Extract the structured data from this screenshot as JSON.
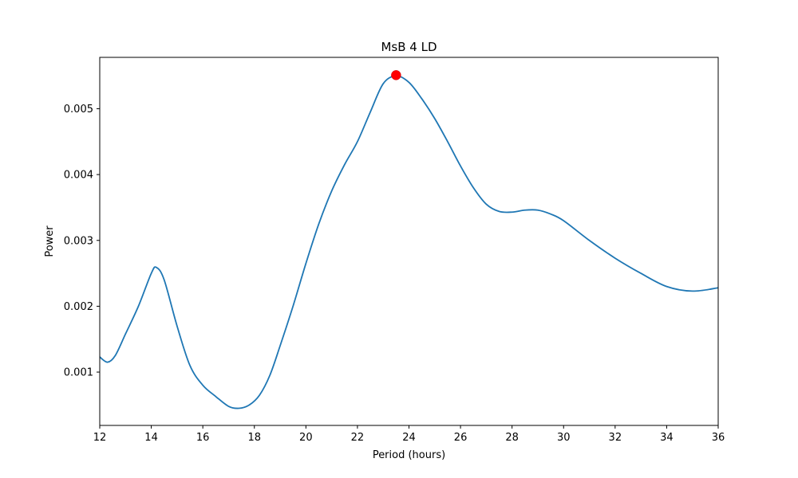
{
  "chart_data": {
    "type": "line",
    "title": "MsB 4 LD",
    "xlabel": "Period (hours)",
    "ylabel": "Power",
    "xlim": [
      12,
      36
    ],
    "ylim": [
      0.00019,
      0.00578
    ],
    "x_ticks": [
      12,
      14,
      16,
      18,
      20,
      22,
      24,
      26,
      28,
      30,
      32,
      34,
      36
    ],
    "y_ticks": [
      0.001,
      0.002,
      0.003,
      0.004,
      0.005
    ],
    "x_tick_labels": [
      "12",
      "14",
      "16",
      "18",
      "20",
      "22",
      "24",
      "26",
      "28",
      "30",
      "32",
      "34",
      "36"
    ],
    "y_tick_labels": [
      "0.001",
      "0.002",
      "0.003",
      "0.004",
      "0.005"
    ],
    "grid": false,
    "line_color": "#1f77b4",
    "marker_color": "#ff0000",
    "series": [
      {
        "x": [
          12.0,
          12.3,
          12.6,
          13.0,
          13.5,
          14.0,
          14.2,
          14.5,
          15.0,
          15.5,
          16.0,
          16.5,
          17.0,
          17.4,
          17.8,
          18.2,
          18.6,
          19.0,
          19.5,
          20.0,
          20.5,
          21.0,
          21.5,
          22.0,
          22.5,
          23.0,
          23.5,
          24.0,
          24.5,
          25.0,
          25.5,
          26.0,
          26.5,
          27.0,
          27.5,
          28.0,
          28.5,
          29.0,
          29.5,
          30.0,
          31.0,
          32.0,
          33.0,
          34.0,
          35.0,
          36.0
        ],
        "y": [
          0.00123,
          0.00115,
          0.00125,
          0.00158,
          0.002,
          0.0025,
          0.00259,
          0.0024,
          0.0017,
          0.0011,
          0.0008,
          0.00063,
          0.00048,
          0.00045,
          0.0005,
          0.00065,
          0.00095,
          0.0014,
          0.002,
          0.00265,
          0.00325,
          0.00375,
          0.00415,
          0.0045,
          0.00495,
          0.00538,
          0.0055,
          0.0054,
          0.00515,
          0.00485,
          0.0045,
          0.00413,
          0.0038,
          0.00355,
          0.00344,
          0.00343,
          0.00346,
          0.00346,
          0.0034,
          0.0033,
          0.003,
          0.00273,
          0.0025,
          0.0023,
          0.00223,
          0.00228
        ]
      }
    ],
    "peak": {
      "x": 23.5,
      "y": 0.00551
    }
  }
}
